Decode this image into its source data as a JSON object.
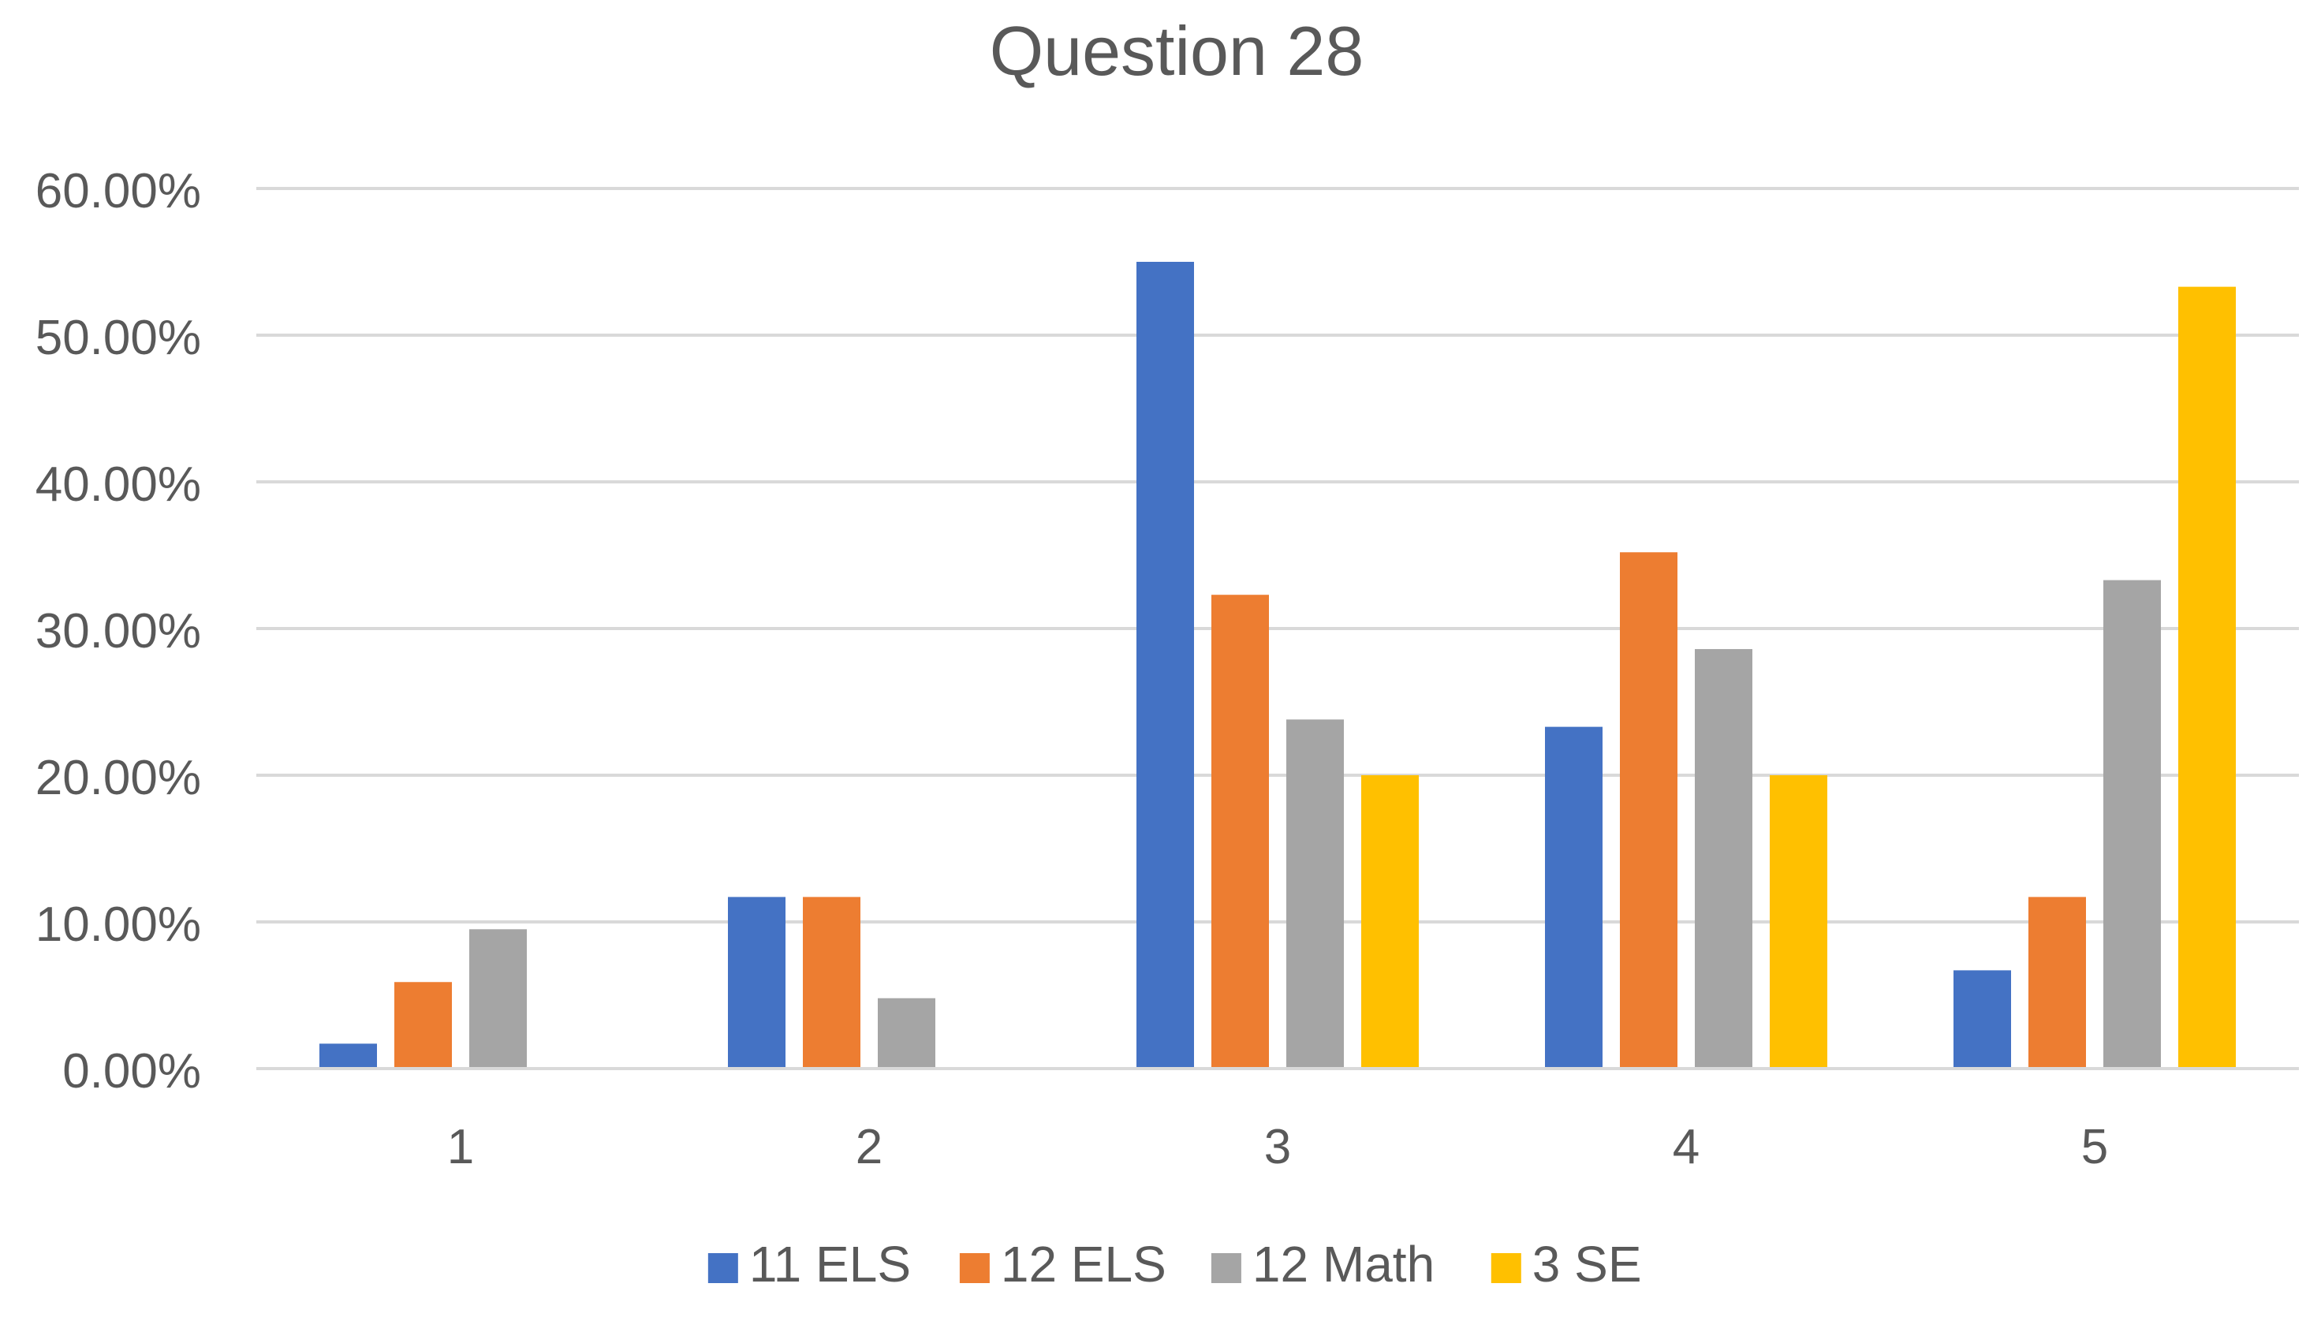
{
  "chart_data": {
    "type": "bar",
    "title": "Question 28",
    "xlabel": "",
    "ylabel": "",
    "categories": [
      "1",
      "2",
      "3",
      "4",
      "5"
    ],
    "y_ticks": [
      "0.00%",
      "10.00%",
      "20.00%",
      "30.00%",
      "40.00%",
      "50.00%",
      "60.00%"
    ],
    "ylim": [
      0,
      60
    ],
    "grid": true,
    "legend_position": "bottom",
    "series": [
      {
        "name": "11 ELS",
        "color": "#4472C4",
        "values": [
          1.7,
          11.7,
          55.0,
          23.3,
          6.7
        ]
      },
      {
        "name": "12 ELS",
        "color": "#ED7D31",
        "values": [
          5.9,
          11.7,
          32.3,
          35.2,
          11.7
        ]
      },
      {
        "name": "12 Math",
        "color": "#A5A5A5",
        "values": [
          9.5,
          4.8,
          23.8,
          28.6,
          33.3
        ]
      },
      {
        "name": "3 SE",
        "color": "#FFC000",
        "values": [
          0,
          0,
          20.0,
          20.0,
          53.3
        ]
      }
    ]
  }
}
